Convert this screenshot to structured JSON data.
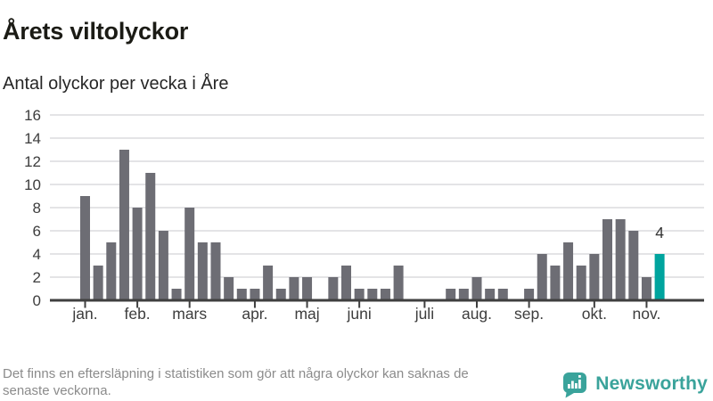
{
  "header": {
    "title": "Årets viltolyckor",
    "subtitle": "Antal olyckor per vecka i Åre"
  },
  "chart_data": {
    "type": "bar",
    "title": "Årets viltolyckor",
    "subtitle": "Antal olyckor per vecka i Åre",
    "x_unit": "vecka (week)",
    "values": [
      9,
      3,
      5,
      13,
      8,
      11,
      6,
      1,
      8,
      5,
      5,
      2,
      1,
      1,
      3,
      1,
      2,
      2,
      0,
      2,
      3,
      1,
      1,
      1,
      3,
      0,
      0,
      0,
      1,
      1,
      2,
      1,
      1,
      0,
      1,
      4,
      3,
      5,
      3,
      4,
      7,
      7,
      6,
      2,
      4
    ],
    "highlight_index": 44,
    "highlight_value_label": "4",
    "yticks": [
      0,
      2,
      4,
      6,
      8,
      10,
      12,
      14,
      16
    ],
    "ylim": [
      0,
      16
    ],
    "grid": "on",
    "legend": "none",
    "month_ticks": [
      {
        "label": "jan.",
        "index": 0
      },
      {
        "label": "feb.",
        "index": 4
      },
      {
        "label": "mars",
        "index": 8
      },
      {
        "label": "apr.",
        "index": 13
      },
      {
        "label": "maj",
        "index": 17
      },
      {
        "label": "juni",
        "index": 21
      },
      {
        "label": "juli",
        "index": 26
      },
      {
        "label": "aug.",
        "index": 30
      },
      {
        "label": "sep.",
        "index": 34
      },
      {
        "label": "okt.",
        "index": 39
      },
      {
        "label": "nov.",
        "index": 43
      }
    ],
    "colors": {
      "bar": "#6d6d74",
      "highlight": "#00a49e",
      "grid": "#e4e4e6",
      "axis": "#3f3f3f",
      "tick_label": "#3d3d3d",
      "value_label": "#333333"
    }
  },
  "footer": {
    "note_lines": [
      "Det finns en eftersläpning i statistiken som gör att några olyckor kan saknas de",
      "senaste veckorna."
    ],
    "brand": "Newsworthy",
    "brand_color": "#3aa39b"
  }
}
